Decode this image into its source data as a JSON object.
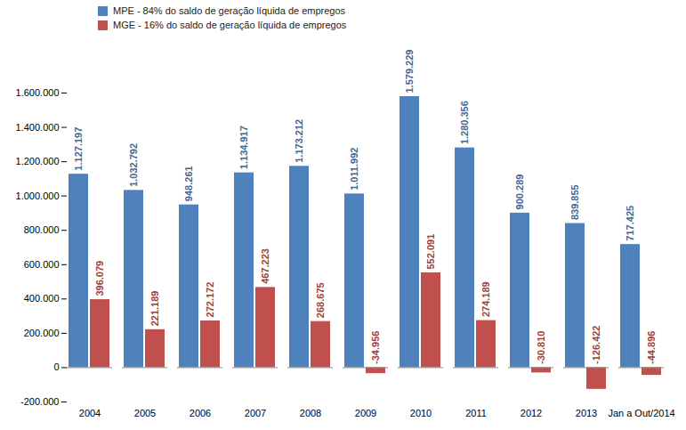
{
  "chart_data": {
    "type": "bar",
    "categories": [
      "2004",
      "2005",
      "2006",
      "2007",
      "2008",
      "2009",
      "2010",
      "2011",
      "2012",
      "2013",
      "Jan a Out/2014"
    ],
    "series": [
      {
        "name": "MPE - 84% do saldo de geração líquida de empregos",
        "color": "#4f81bd",
        "values": [
          1127197,
          1032792,
          948261,
          1134917,
          1173212,
          1011992,
          1579229,
          1280356,
          900289,
          839855,
          717425
        ],
        "value_labels": [
          "1.127.197",
          "1.032.792",
          "948.261",
          "1.134.917",
          "1.173.212",
          "1.011.992",
          "1.579.229",
          "1.280.356",
          "900.289",
          "839.855",
          "717.425"
        ]
      },
      {
        "name": "MGE - 16% do saldo de geração líquida de empregos",
        "color": "#c0504d",
        "values": [
          396079,
          221189,
          272172,
          467223,
          268675,
          -34956,
          552091,
          274189,
          -30810,
          -126422,
          -44896
        ],
        "value_labels": [
          "396.079",
          "221.189",
          "272.172",
          "467.223",
          "268.675",
          "-34.956",
          "552.091",
          "274.189",
          "-30.810",
          "-126.422",
          "-44.896"
        ]
      }
    ],
    "ylim": [
      -200000,
      1600000
    ],
    "yticks": [
      {
        "value": -200000,
        "label": "-200.000"
      },
      0,
      {
        "value": 200000,
        "label": "200.000"
      },
      {
        "value": 400000,
        "label": "400.000"
      },
      {
        "value": 600000,
        "label": "600.000"
      },
      {
        "value": 800000,
        "label": "800.000"
      },
      {
        "value": 1000000,
        "label": "1.000.000"
      },
      {
        "value": 1200000,
        "label": "1.200.000"
      },
      {
        "value": 1400000,
        "label": "1.400.000"
      },
      {
        "value": 1600000,
        "label": "1.600.000"
      }
    ],
    "grid": false,
    "legend": "top-left",
    "data_labels": true
  }
}
